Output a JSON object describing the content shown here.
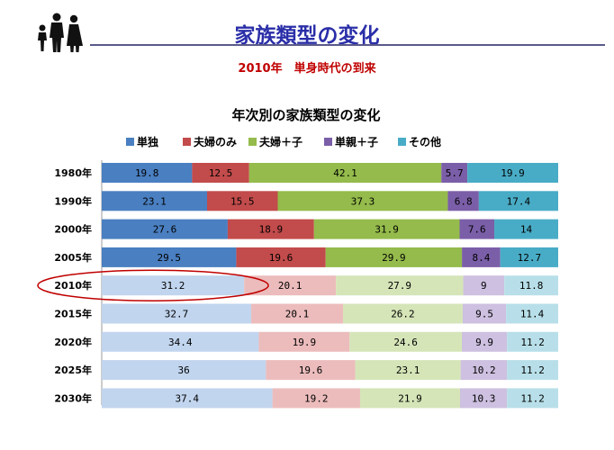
{
  "slide": {
    "title": "家族類型の変化",
    "subtitle": "2010年　単身時代の到来"
  },
  "icons": {
    "logo": "family-silhouette-icon"
  },
  "chart_data": {
    "type": "bar",
    "orientation": "horizontal",
    "stacked": "percent",
    "title": "年次別の家族類型の変化",
    "categories": [
      "1980年",
      "1990年",
      "2000年",
      "2005年",
      "2010年",
      "2015年",
      "2020年",
      "2025年",
      "2030年"
    ],
    "series": [
      {
        "name": "単独",
        "color": "#4a7fc1",
        "light_color": "#c1d5ee",
        "values": [
          19.8,
          23.1,
          27.6,
          29.5,
          31.2,
          32.7,
          34.4,
          36,
          37.4
        ]
      },
      {
        "name": "夫婦のみ",
        "color": "#c24b4b",
        "light_color": "#ecbcbc",
        "values": [
          12.5,
          15.5,
          18.9,
          19.6,
          20.1,
          20.1,
          19.9,
          19.6,
          19.2
        ]
      },
      {
        "name": "夫婦＋子",
        "color": "#94bb4b",
        "light_color": "#d5e5b8",
        "values": [
          42.1,
          37.3,
          31.9,
          29.9,
          27.9,
          26.2,
          24.6,
          23.1,
          21.9
        ]
      },
      {
        "name": "単親＋子",
        "color": "#7b5ea8",
        "light_color": "#cdc0e0",
        "values": [
          5.7,
          6.8,
          7.6,
          8.4,
          9,
          9.5,
          9.9,
          10.2,
          10.3
        ]
      },
      {
        "name": "その他",
        "color": "#49acc6",
        "light_color": "#b8dfe9",
        "values": [
          19.9,
          17.4,
          14,
          12.7,
          11.8,
          11.4,
          11.2,
          11.2,
          11.2
        ]
      }
    ],
    "highlight_category": "2010年",
    "faded_from_category": "2010年",
    "highlight_color": "#c00000",
    "legend_position": "top",
    "grid": false
  }
}
